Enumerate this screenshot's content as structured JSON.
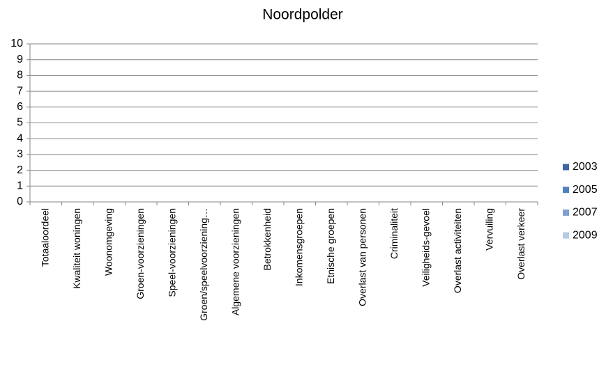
{
  "chart_data": {
    "type": "bar",
    "title": "Noordpolder",
    "categories": [
      "Totaaloordeel",
      "Kwaliteit woningen",
      "Woonomgeving",
      "Groen-voorzieningen",
      "Speel-voorzieningen",
      "Groen/speelvoorziening…",
      "Algemene voorzieningen",
      "Betrokkenheid",
      "Inkomensgroepen",
      "Etnische groepen",
      "Overlast van personen",
      "Criminaliteit",
      "Veiligheids-gevoel",
      "Overlast activiteiten",
      "Vervuiling",
      "Overlast verkeer"
    ],
    "series": [
      {
        "name": "2003",
        "color": "#3c64a0",
        "values": [
          null,
          null,
          null,
          null,
          null,
          null,
          null,
          null,
          null,
          null,
          null,
          null,
          null,
          null,
          null,
          null
        ]
      },
      {
        "name": "2005",
        "color": "#4f81bd",
        "values": [
          null,
          null,
          null,
          null,
          null,
          null,
          null,
          null,
          null,
          null,
          null,
          null,
          null,
          null,
          null,
          null
        ]
      },
      {
        "name": "2007",
        "color": "#809fd1",
        "values": [
          null,
          null,
          null,
          null,
          null,
          null,
          null,
          null,
          null,
          null,
          null,
          null,
          null,
          null,
          null,
          null
        ]
      },
      {
        "name": "2009",
        "color": "#b8c9e6",
        "values": [
          null,
          null,
          null,
          null,
          null,
          null,
          null,
          null,
          null,
          null,
          null,
          null,
          null,
          null,
          null,
          null
        ]
      }
    ],
    "ylim": [
      0,
      10
    ],
    "yticks": [
      0,
      1,
      2,
      3,
      4,
      5,
      6,
      7,
      8,
      9,
      10
    ],
    "grid": true,
    "legend": "right"
  }
}
